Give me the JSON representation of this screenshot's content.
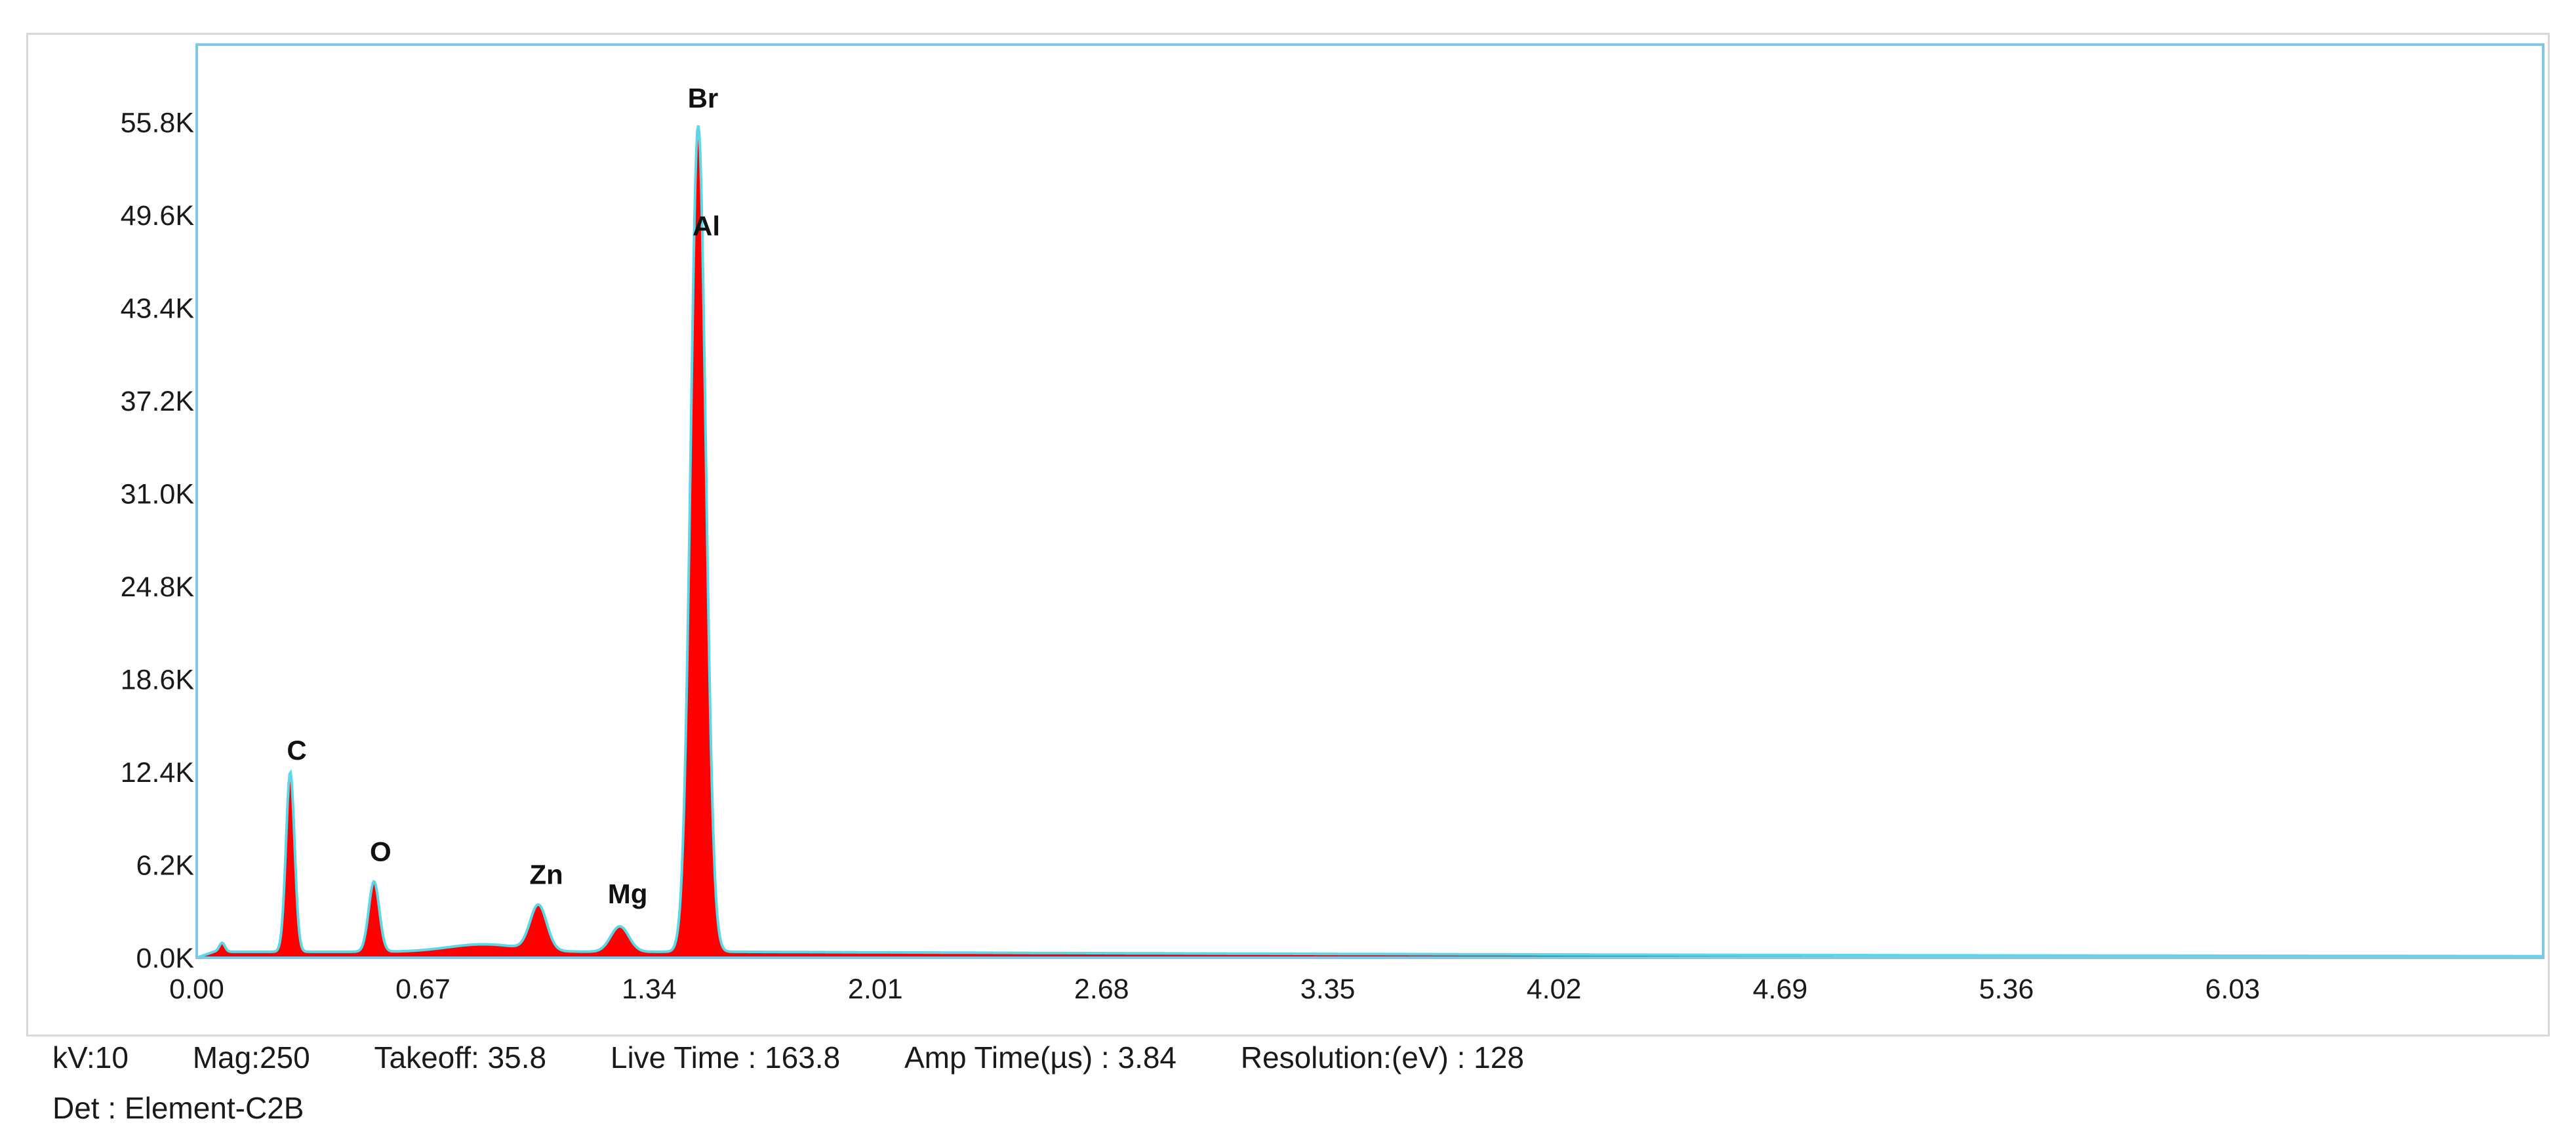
{
  "chart_data": {
    "type": "area",
    "title": "",
    "xlabel": "",
    "ylabel": "",
    "xlim": [
      0.0,
      6.95
    ],
    "ylim": [
      0,
      61000
    ],
    "x_ticks": [
      "0.00",
      "0.67",
      "1.34",
      "2.01",
      "2.68",
      "3.35",
      "4.02",
      "4.69",
      "5.36",
      "6.03"
    ],
    "y_ticks": [
      "0.0K",
      "6.2K",
      "12.4K",
      "18.6K",
      "24.8K",
      "31.0K",
      "37.2K",
      "43.4K",
      "49.6K",
      "55.8K"
    ],
    "fill_color": "#ff0000",
    "outline_color": "#5ad8e8",
    "frame_color": "#7fc8e8",
    "baseline_counts": 400,
    "peaks": [
      {
        "label": "C",
        "x": 0.277,
        "y": 12000
      },
      {
        "label": "O",
        "x": 0.525,
        "y": 4700
      },
      {
        "label": "Zn",
        "x": 1.012,
        "y": 3000
      },
      {
        "label": "Mg",
        "x": 1.253,
        "y": 1700
      },
      {
        "label": "Br",
        "x": 1.48,
        "y": 56000
      },
      {
        "label": "Al",
        "x": 1.486,
        "y": 50000
      }
    ]
  },
  "footer": {
    "kv": "kV:10",
    "mag": "Mag:250",
    "takeoff": "Takeoff: 35.8",
    "live_time": "Live Time : 163.8",
    "amp_time": "Amp Time(µs) : 3.84",
    "resolution": "Resolution:(eV) : 128",
    "detector": "Det : Element-C2B"
  }
}
